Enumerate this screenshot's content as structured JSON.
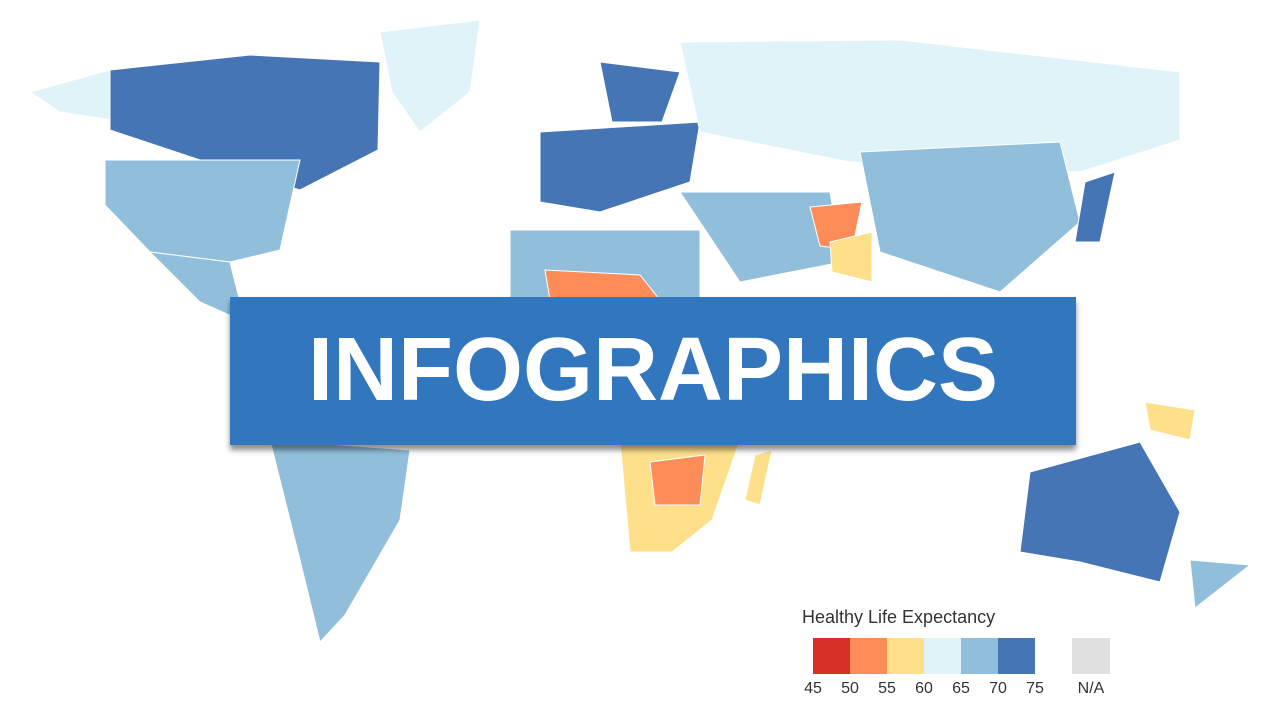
{
  "banner": {
    "title": "INFOGRAPHICS"
  },
  "legend": {
    "title": "Healthy Life Expectancy",
    "ticks": [
      45,
      50,
      55,
      60,
      65,
      70,
      75
    ],
    "colors": [
      "#d73027",
      "#fc8d59",
      "#fee08b",
      "#e0f3f8",
      "#91bfdb",
      "#4575b4"
    ],
    "na_label": "N/A",
    "na_color": "#e0e0e0"
  }
}
